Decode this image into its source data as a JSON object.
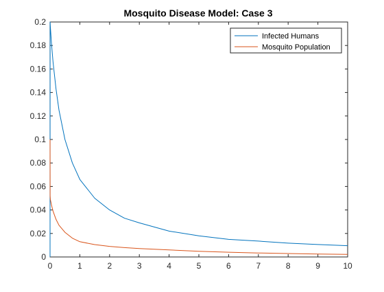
{
  "chart_data": {
    "type": "line",
    "title": "Mosquito Disease Model: Case 3",
    "xlabel": "",
    "ylabel": "",
    "xlim": [
      0,
      10
    ],
    "ylim": [
      0,
      0.2
    ],
    "xticks": [
      0,
      1,
      2,
      3,
      4,
      5,
      6,
      7,
      8,
      9,
      10
    ],
    "yticks": [
      0,
      0.02,
      0.04,
      0.06,
      0.08,
      0.1,
      0.12,
      0.14,
      0.16,
      0.18,
      0.2
    ],
    "grid": false,
    "legend_position": "top-right",
    "series": [
      {
        "name": "Infected Humans",
        "color": "#0072BD",
        "x": [
          0,
          0.002,
          0.01,
          0.05,
          0.1,
          0.2,
          0.3,
          0.5,
          0.75,
          1,
          1.5,
          2,
          2.5,
          3,
          4,
          5,
          6,
          7,
          8,
          9,
          10
        ],
        "y": [
          0,
          0.2,
          0.196,
          0.181,
          0.166,
          0.143,
          0.125,
          0.1,
          0.08,
          0.066,
          0.05,
          0.04,
          0.033,
          0.029,
          0.022,
          0.018,
          0.015,
          0.0135,
          0.0118,
          0.0106,
          0.0096
        ]
      },
      {
        "name": "Mosquito Population",
        "color": "#D95319",
        "x": [
          0,
          0.002,
          0.01,
          0.05,
          0.1,
          0.2,
          0.3,
          0.5,
          0.75,
          1,
          1.5,
          2,
          2.5,
          3,
          4,
          5,
          6,
          7,
          8,
          9,
          10
        ],
        "y": [
          0.1,
          0.052,
          0.049,
          0.044,
          0.039,
          0.032,
          0.027,
          0.021,
          0.016,
          0.013,
          0.0105,
          0.009,
          0.008,
          0.0072,
          0.006,
          0.0048,
          0.004,
          0.0034,
          0.0029,
          0.0025,
          0.0022
        ]
      }
    ]
  }
}
